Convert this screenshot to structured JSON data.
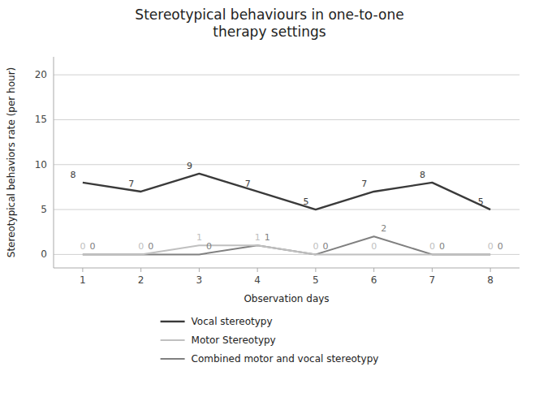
{
  "chart_data": {
    "type": "line",
    "title": "Stereotypical behaviours in one-to-one\ntherapy settings",
    "x_label": "Observation days",
    "y_label": "Stereotypical behaviors rate (per hour)",
    "x": [
      1,
      2,
      3,
      4,
      5,
      6,
      7,
      8
    ],
    "series": [
      {
        "name": "Vocal stereotypy",
        "color": "#3a3a3a",
        "values": [
          8,
          7,
          9,
          7,
          5,
          7,
          8,
          5
        ]
      },
      {
        "name": "Motor Stereotypy",
        "color": "#c0c0c0",
        "values": [
          0,
          0,
          1,
          1,
          0,
          0,
          0,
          0
        ]
      },
      {
        "name": "Combined motor and vocal stereotypy",
        "color": "#808080",
        "values": [
          0,
          0,
          0,
          1,
          0,
          2,
          0,
          0
        ]
      }
    ],
    "xlim": [
      0.5,
      8.5
    ],
    "xticks": [
      1,
      2,
      3,
      4,
      5,
      6,
      7,
      8
    ],
    "ylim": [
      -1.5,
      22
    ],
    "yticks": [
      0,
      5,
      10,
      15,
      20
    ],
    "grid": true,
    "data_labels": true,
    "legend": "bottom"
  }
}
